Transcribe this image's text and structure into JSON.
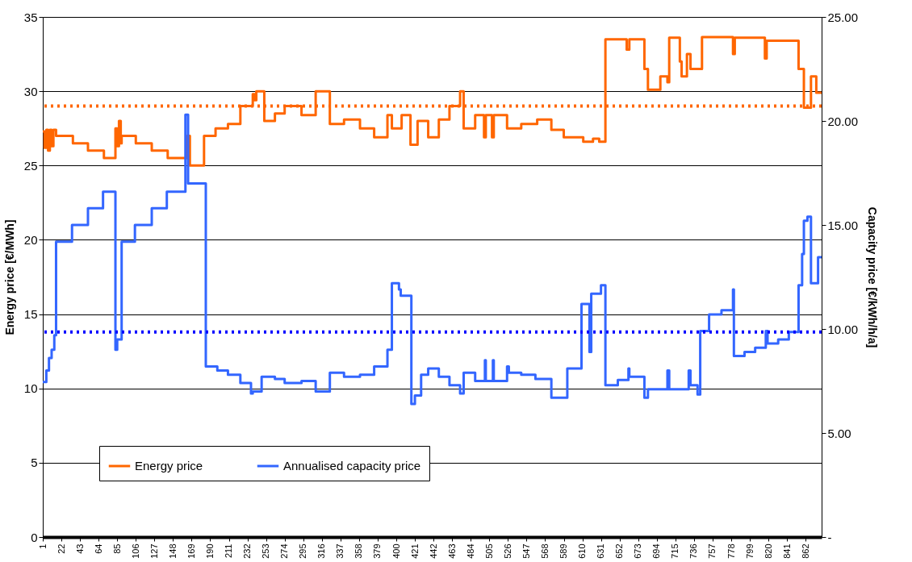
{
  "chart_data": {
    "type": "step",
    "ylabel": "Energy price [€/MWh]",
    "y2label": "Capacity price [€/kWh/h/a]",
    "xlim": [
      1,
      880
    ],
    "xticks": [
      1,
      22,
      43,
      64,
      85,
      106,
      127,
      148,
      169,
      190,
      211,
      232,
      253,
      274,
      295,
      316,
      337,
      358,
      379,
      400,
      421,
      442,
      463,
      484,
      505,
      526,
      547,
      568,
      589,
      610,
      631,
      652,
      673,
      694,
      715,
      736,
      757,
      778,
      799,
      820,
      841,
      862
    ],
    "ylim": [
      0,
      35
    ],
    "yticks": [
      0,
      5,
      10,
      15,
      20,
      25,
      30,
      35
    ],
    "y2lim": [
      0,
      25
    ],
    "y2ticks": [
      {
        "value": 0,
        "label": "-"
      },
      {
        "value": 5,
        "label": "5.00"
      },
      {
        "value": 10,
        "label": "10.00"
      },
      {
        "value": 15,
        "label": "15.00"
      },
      {
        "value": 20,
        "label": "20.00"
      },
      {
        "value": 25,
        "label": "25.00"
      }
    ],
    "grid": "y",
    "legend": "bottom left",
    "line_style": "solid",
    "series": [
      {
        "name": "Energy price",
        "color": "#ff6600",
        "x": [
          1,
          3,
          5,
          7,
          9,
          11,
          13,
          16,
          35,
          52,
          70,
          83,
          85,
          87,
          89,
          90,
          106,
          124,
          142,
          164,
          167,
          183,
          196,
          210,
          224,
          238,
          240,
          242,
          251,
          263,
          274,
          293,
          309,
          325,
          341,
          359,
          375,
          390,
          395,
          406,
          416,
          424,
          436,
          448,
          460,
          472,
          476,
          489,
          499,
          501,
          508,
          510,
          525,
          541,
          559,
          575,
          589,
          611,
          622,
          629,
          636,
          660,
          663,
          680,
          684,
          698,
          706,
          708,
          720,
          722,
          728,
          732,
          745,
          780,
          782,
          816,
          818,
          854,
          860,
          868,
          874,
          880
        ],
        "values": [
          27.3,
          26.2,
          27.4,
          26.0,
          27.4,
          26.3,
          27.4,
          27.0,
          26.5,
          26.0,
          25.5,
          27.5,
          26.3,
          28.0,
          26.5,
          27.0,
          26.5,
          26.0,
          25.5,
          27.0,
          25.0,
          27.0,
          27.5,
          27.8,
          29.0,
          29.8,
          29.4,
          30.0,
          28.0,
          28.5,
          29.0,
          28.4,
          30.0,
          27.8,
          28.1,
          27.5,
          26.9,
          28.4,
          27.5,
          28.4,
          26.4,
          28.0,
          26.9,
          28.1,
          29.0,
          30.0,
          27.5,
          28.4,
          26.9,
          28.4,
          26.9,
          28.4,
          27.5,
          27.8,
          28.1,
          27.4,
          26.9,
          26.6,
          26.8,
          26.6,
          33.5,
          32.8,
          33.5,
          31.5,
          30.1,
          31.0,
          30.6,
          33.6,
          32.0,
          31.0,
          32.5,
          31.5,
          33.65,
          32.5,
          33.6,
          32.2,
          33.4,
          31.5,
          28.9,
          31.0,
          29.9,
          29.9
        ]
      },
      {
        "name": "Annualised capacity price",
        "color": "#3366ff",
        "axis": "y2",
        "x": [
          1,
          5,
          8,
          11,
          14,
          16,
          34,
          52,
          69,
          83,
          85,
          90,
          105,
          124,
          141,
          162,
          165,
          185,
          198,
          210,
          224,
          236,
          238,
          248,
          263,
          274,
          293,
          309,
          325,
          341,
          359,
          375,
          390,
          395,
          403,
          405,
          417,
          421,
          428,
          436,
          448,
          460,
          472,
          476,
          489,
          500,
          501,
          509,
          510,
          525,
          527,
          541,
          557,
          575,
          593,
          609,
          618,
          620,
          631,
          636,
          650,
          662,
          663,
          680,
          684,
          706,
          708,
          730,
          732,
          740,
          743,
          753,
          767,
          780,
          781,
          793,
          805,
          817,
          819,
          831,
          843,
          854,
          858,
          860,
          864,
          868,
          876,
          880
        ],
        "values": [
          7.45,
          8.0,
          8.6,
          9.0,
          9.7,
          14.2,
          15.0,
          15.8,
          16.6,
          9.0,
          9.5,
          14.2,
          15.0,
          15.8,
          16.6,
          20.3,
          17.0,
          8.2,
          8.0,
          7.8,
          7.4,
          6.9,
          7.0,
          7.7,
          7.6,
          7.4,
          7.5,
          7.0,
          7.9,
          7.7,
          7.8,
          8.2,
          9.0,
          12.2,
          11.9,
          11.6,
          6.4,
          6.8,
          7.8,
          8.1,
          7.7,
          7.3,
          6.9,
          7.9,
          7.5,
          8.5,
          7.5,
          8.5,
          7.5,
          8.2,
          7.9,
          7.8,
          7.6,
          6.7,
          8.1,
          11.2,
          8.9,
          11.7,
          12.1,
          7.3,
          7.55,
          8.1,
          7.7,
          6.7,
          7.1,
          8.0,
          7.1,
          8.0,
          7.3,
          6.85,
          9.9,
          10.7,
          10.9,
          11.9,
          8.7,
          8.9,
          9.1,
          9.9,
          9.3,
          9.5,
          9.85,
          12.1,
          13.6,
          15.2,
          15.4,
          12.2,
          13.45,
          13.45
        ]
      }
    ],
    "ref_lines": [
      {
        "axis": "y",
        "value": 29.0,
        "color": "#ff6600",
        "line_style": "dotted"
      },
      {
        "axis": "y2",
        "value": 9.85,
        "color": "#0000ff",
        "line_style": "dotted"
      }
    ]
  }
}
